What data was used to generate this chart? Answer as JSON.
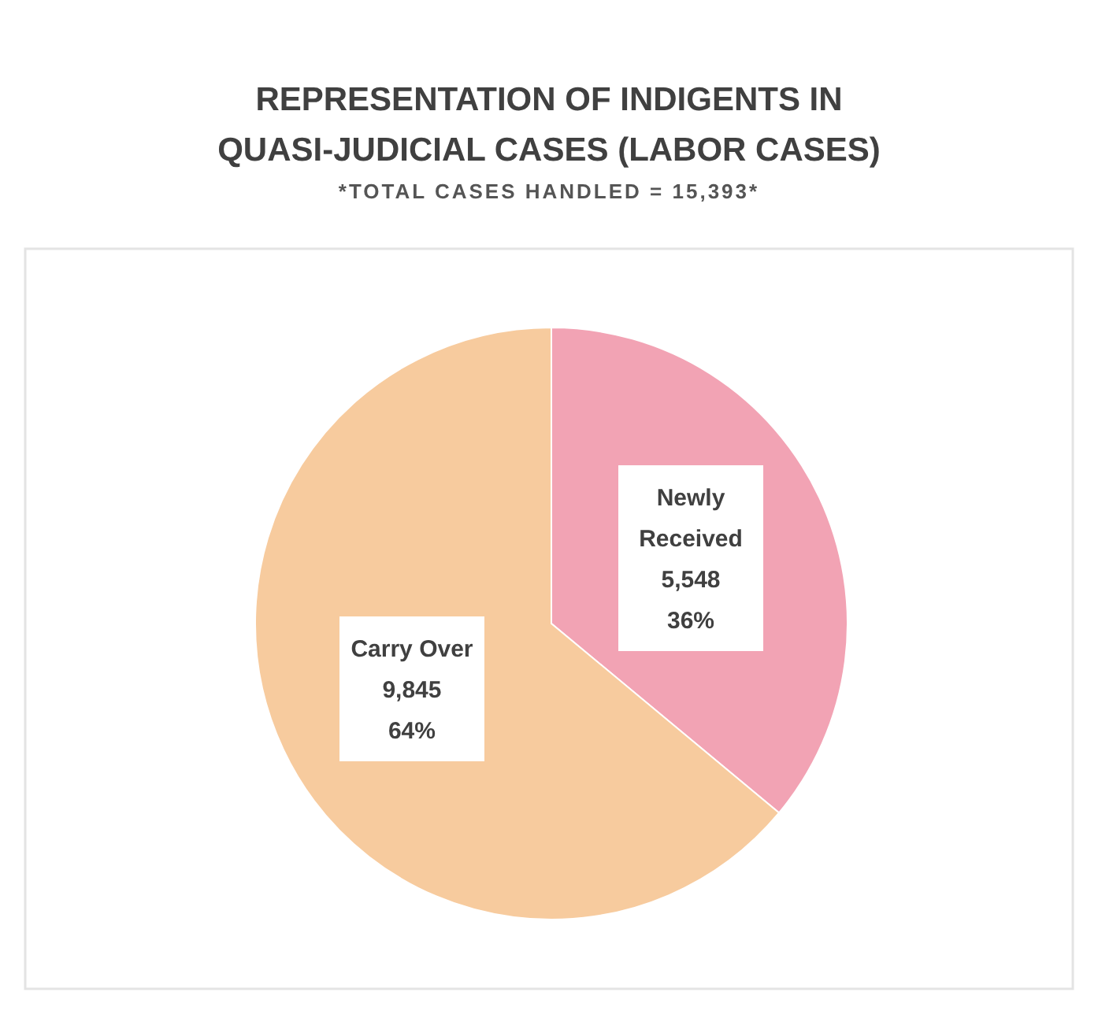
{
  "chart_data": {
    "type": "pie",
    "title": "REPRESENTATION OF INDIGENTS IN QUASI-JUDICIAL CASES (LABOR CASES)",
    "subtitle": "*TOTAL CASES HANDLED = 15,393*",
    "categories": [
      "Newly Received",
      "Carry Over"
    ],
    "values": [
      5548,
      9845
    ],
    "value_labels": [
      "5,548\n36%",
      "9,845\n64%"
    ],
    "colors": [
      "#f2a3b4",
      "#f7cb9e"
    ]
  }
}
